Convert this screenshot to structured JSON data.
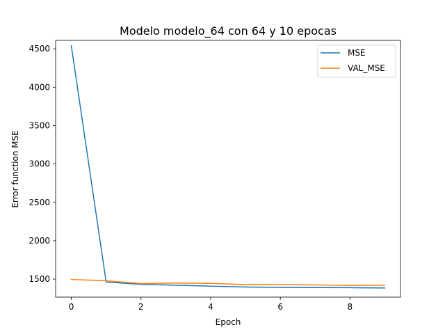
{
  "chart_data": {
    "type": "line",
    "title": "Modelo  modelo_64 con 64 y 10 epocas",
    "xlabel": "Epoch",
    "ylabel": "Error function MSE",
    "xlim": [
      -0.45,
      9.45
    ],
    "ylim": [
      1265,
      4610
    ],
    "x_ticks": [
      0,
      2,
      4,
      6,
      8
    ],
    "y_ticks": [
      1500,
      2000,
      2500,
      3000,
      3500,
      4000,
      4500
    ],
    "grid": false,
    "legend_position": "upper right",
    "x": [
      0,
      1,
      2,
      3,
      4,
      5,
      6,
      7,
      8,
      9
    ],
    "series": [
      {
        "name": "MSE",
        "color": "#1f77b4",
        "values": [
          4540,
          1462,
          1432,
          1420,
          1408,
          1397,
          1392,
          1390,
          1388,
          1384
        ]
      },
      {
        "name": "VAL_MSE",
        "color": "#ff7f0e",
        "values": [
          1495,
          1478,
          1442,
          1448,
          1444,
          1428,
          1428,
          1424,
          1418,
          1420
        ]
      }
    ]
  }
}
